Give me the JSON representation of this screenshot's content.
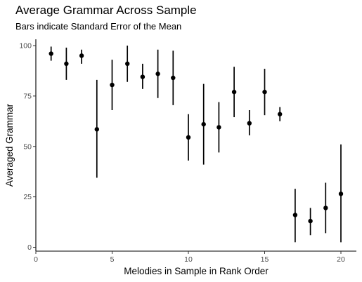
{
  "chart_data": {
    "type": "scatter",
    "title": "Average Grammar Across Sample",
    "subtitle": "Bars indicate Standard Error of the Mean",
    "xlabel": "Melodies in Sample in Rank Order",
    "ylabel": "Averaged Grammar",
    "xlim": [
      0,
      21
    ],
    "ylim": [
      0,
      100
    ],
    "xticks": [
      0,
      5,
      10,
      15,
      20
    ],
    "yticks": [
      0,
      25,
      50,
      75,
      100
    ],
    "grid": false,
    "points": [
      {
        "x": 1,
        "y": 96,
        "lo": 92.5,
        "hi": 99.5
      },
      {
        "x": 2,
        "y": 91,
        "lo": 83,
        "hi": 99
      },
      {
        "x": 3,
        "y": 95,
        "lo": 91,
        "hi": 98
      },
      {
        "x": 4,
        "y": 58.5,
        "lo": 34.5,
        "hi": 83
      },
      {
        "x": 5,
        "y": 80.5,
        "lo": 68,
        "hi": 93
      },
      {
        "x": 6,
        "y": 91,
        "lo": 82,
        "hi": 100
      },
      {
        "x": 7,
        "y": 84.5,
        "lo": 78.5,
        "hi": 91
      },
      {
        "x": 8,
        "y": 86,
        "lo": 74,
        "hi": 98
      },
      {
        "x": 9,
        "y": 84,
        "lo": 70.5,
        "hi": 97.5
      },
      {
        "x": 10,
        "y": 54.5,
        "lo": 43,
        "hi": 66
      },
      {
        "x": 11,
        "y": 61,
        "lo": 41,
        "hi": 81
      },
      {
        "x": 12,
        "y": 59.5,
        "lo": 47,
        "hi": 72
      },
      {
        "x": 13,
        "y": 77,
        "lo": 64.5,
        "hi": 89.5
      },
      {
        "x": 14,
        "y": 61.5,
        "lo": 55.5,
        "hi": 68
      },
      {
        "x": 15,
        "y": 77,
        "lo": 65.5,
        "hi": 88.5
      },
      {
        "x": 16,
        "y": 66,
        "lo": 62.5,
        "hi": 69.5
      },
      {
        "x": 17,
        "y": 16,
        "lo": 2.5,
        "hi": 29
      },
      {
        "x": 18,
        "y": 13,
        "lo": 6,
        "hi": 19.5
      },
      {
        "x": 19,
        "y": 19.5,
        "lo": 7,
        "hi": 32
      },
      {
        "x": 20,
        "y": 26.5,
        "lo": 2.5,
        "hi": 51
      }
    ]
  }
}
